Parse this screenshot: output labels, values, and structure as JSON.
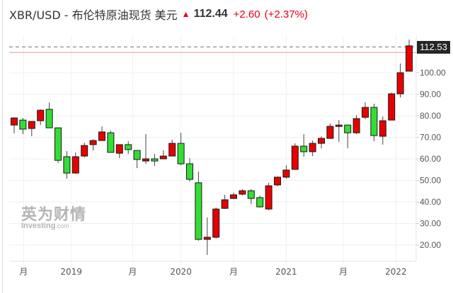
{
  "header": {
    "title": "XBR/USD - 布伦特原油现货 美元",
    "arrow_icon": "up-arrow-icon",
    "price": "112.44",
    "change": "+2.60",
    "change_pct": "(+2.37%)",
    "up_color": "#e0001b"
  },
  "last_price_tag": "112.53",
  "watermark": {
    "cn": "英为财情",
    "en": "Investing",
    "en_suffix": ".com"
  },
  "chart_data": {
    "type": "candlestick",
    "title": "XBR/USD - 布伦特原油现货 美元",
    "xlabel": "",
    "ylabel": "",
    "ylim": [
      14,
      117
    ],
    "grid": true,
    "y_ticks": [
      "100.00",
      "90.00",
      "80.00",
      "70.00",
      "60.00",
      "50.00",
      "40.00",
      "30.00",
      "20.00"
    ],
    "y_tick_values": [
      100,
      90,
      80,
      70,
      60,
      50,
      40,
      30,
      20
    ],
    "x_ticks": [
      {
        "label": "月",
        "index": 1
      },
      {
        "label": "2019",
        "index": 6.5
      },
      {
        "label": "月",
        "index": 13.5
      },
      {
        "label": "2020",
        "index": 19
      },
      {
        "label": "月",
        "index": 25
      },
      {
        "label": "2021",
        "index": 31
      },
      {
        "label": "月",
        "index": 37.5
      },
      {
        "label": "2022",
        "index": 43.5
      }
    ],
    "up_color": "#e60000",
    "down_color": "#33dd33",
    "last_price": 112.53,
    "reference_line": 110.2,
    "candles": [
      {
        "o": 75.7,
        "h": 79.3,
        "l": 71.8,
        "c": 79.0
      },
      {
        "o": 78.0,
        "h": 79.0,
        "l": 71.5,
        "c": 73.8
      },
      {
        "o": 74.1,
        "h": 77.4,
        "l": 70.5,
        "c": 77.4
      },
      {
        "o": 77.7,
        "h": 83.0,
        "l": 75.7,
        "c": 82.6
      },
      {
        "o": 83.0,
        "h": 86.2,
        "l": 74.4,
        "c": 74.4
      },
      {
        "o": 74.4,
        "h": 74.4,
        "l": 58.0,
        "c": 59.3
      },
      {
        "o": 61.0,
        "h": 63.6,
        "l": 50.8,
        "c": 53.4
      },
      {
        "o": 53.4,
        "h": 63.0,
        "l": 53.1,
        "c": 61.0
      },
      {
        "o": 61.3,
        "h": 67.5,
        "l": 60.7,
        "c": 66.2
      },
      {
        "o": 66.6,
        "h": 69.2,
        "l": 63.9,
        "c": 68.5
      },
      {
        "o": 68.5,
        "h": 75.1,
        "l": 68.5,
        "c": 72.5
      },
      {
        "o": 72.1,
        "h": 73.1,
        "l": 63.0,
        "c": 63.0
      },
      {
        "o": 62.6,
        "h": 66.6,
        "l": 60.3,
        "c": 66.6
      },
      {
        "o": 66.6,
        "h": 68.2,
        "l": 62.3,
        "c": 64.3
      },
      {
        "o": 63.9,
        "h": 63.9,
        "l": 55.7,
        "c": 59.7
      },
      {
        "o": 59.0,
        "h": 71.5,
        "l": 57.7,
        "c": 60.0
      },
      {
        "o": 60.0,
        "h": 62.3,
        "l": 56.7,
        "c": 59.0
      },
      {
        "o": 60.0,
        "h": 63.9,
        "l": 60.0,
        "c": 61.3
      },
      {
        "o": 61.3,
        "h": 68.9,
        "l": 61.3,
        "c": 67.2
      },
      {
        "o": 67.2,
        "h": 72.1,
        "l": 57.0,
        "c": 57.7
      },
      {
        "o": 57.7,
        "h": 60.3,
        "l": 49.5,
        "c": 50.5
      },
      {
        "o": 48.9,
        "h": 54.1,
        "l": 22.0,
        "c": 22.6
      },
      {
        "o": 22.6,
        "h": 32.8,
        "l": 15.4,
        "c": 23.6
      },
      {
        "o": 23.6,
        "h": 37.4,
        "l": 23.0,
        "c": 36.7
      },
      {
        "o": 37.0,
        "h": 43.3,
        "l": 36.7,
        "c": 41.0
      },
      {
        "o": 41.6,
        "h": 44.3,
        "l": 41.3,
        "c": 43.3
      },
      {
        "o": 43.6,
        "h": 45.9,
        "l": 43.0,
        "c": 45.2
      },
      {
        "o": 45.2,
        "h": 45.9,
        "l": 39.0,
        "c": 41.6
      },
      {
        "o": 42.0,
        "h": 43.0,
        "l": 37.4,
        "c": 37.7
      },
      {
        "o": 36.7,
        "h": 48.9,
        "l": 36.1,
        "c": 47.5
      },
      {
        "o": 47.9,
        "h": 51.8,
        "l": 47.2,
        "c": 51.5
      },
      {
        "o": 51.5,
        "h": 57.0,
        "l": 50.8,
        "c": 54.8
      },
      {
        "o": 55.1,
        "h": 67.2,
        "l": 55.1,
        "c": 65.9
      },
      {
        "o": 65.9,
        "h": 71.5,
        "l": 61.0,
        "c": 63.3
      },
      {
        "o": 63.3,
        "h": 68.5,
        "l": 61.3,
        "c": 67.2
      },
      {
        "o": 67.2,
        "h": 70.5,
        "l": 64.9,
        "c": 69.5
      },
      {
        "o": 69.5,
        "h": 76.4,
        "l": 69.5,
        "c": 75.1
      },
      {
        "o": 75.4,
        "h": 78.0,
        "l": 67.9,
        "c": 75.7
      },
      {
        "o": 75.7,
        "h": 75.7,
        "l": 64.9,
        "c": 72.1
      },
      {
        "o": 72.1,
        "h": 80.3,
        "l": 71.5,
        "c": 78.7
      },
      {
        "o": 79.3,
        "h": 86.2,
        "l": 78.4,
        "c": 83.9
      },
      {
        "o": 83.9,
        "h": 85.6,
        "l": 68.2,
        "c": 70.8
      },
      {
        "o": 70.5,
        "h": 79.7,
        "l": 66.6,
        "c": 77.7
      },
      {
        "o": 78.0,
        "h": 90.8,
        "l": 78.0,
        "c": 90.2
      },
      {
        "o": 90.2,
        "h": 104.3,
        "l": 88.5,
        "c": 100.0
      },
      {
        "o": 100.7,
        "h": 115.4,
        "l": 100.7,
        "c": 112.5
      }
    ]
  }
}
